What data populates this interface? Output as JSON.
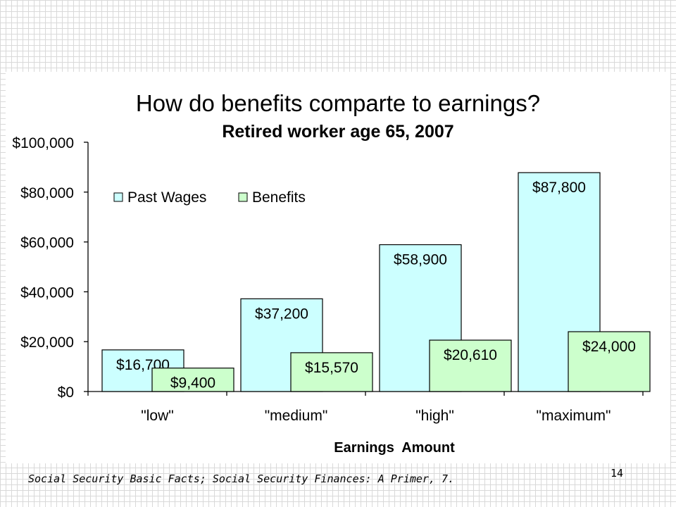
{
  "slide": {
    "footer_citation": "Social Security Basic Facts; Social Security Finances:  A Primer, 7.",
    "page_number": "14"
  },
  "chart_data": {
    "type": "bar",
    "title": "How do benefits comparte to earnings?",
    "subtitle": "Retired worker age 65, 2007",
    "xlabel": "Earnings  Amount",
    "ylabel": "",
    "categories": [
      "\"low\"",
      "\"medium\"",
      "\"high\"",
      "\"maximum\""
    ],
    "series": [
      {
        "name": "Past Wages",
        "values": [
          16700,
          37200,
          58900,
          87800
        ],
        "labels": [
          "$16,700",
          "$37,200",
          "$58,900",
          "$87,800"
        ],
        "color": "#ccffff"
      },
      {
        "name": "Benefits",
        "values": [
          9400,
          15570,
          20610,
          24000
        ],
        "labels": [
          "$9,400",
          "$15,570",
          "$20,610",
          "$24,000"
        ],
        "color": "#ccffcc"
      }
    ],
    "ylim": [
      0,
      100000
    ],
    "yticks": [
      0,
      20000,
      40000,
      60000,
      80000,
      100000
    ],
    "ytick_labels": [
      "$0",
      "$20,000",
      "$40,000",
      "$60,000",
      "$80,000",
      "$100,000"
    ],
    "grid": false,
    "legend_position": "top-left"
  }
}
